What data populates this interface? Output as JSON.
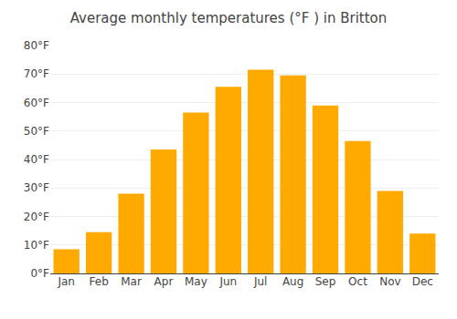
{
  "chart_data": {
    "type": "bar",
    "title": "Average monthly temperatures (°F ) in Britton",
    "categories": [
      "Jan",
      "Feb",
      "Mar",
      "Apr",
      "May",
      "Jun",
      "Jul",
      "Aug",
      "Sep",
      "Oct",
      "Nov",
      "Dec"
    ],
    "values": [
      8.5,
      14.5,
      28.0,
      43.5,
      56.5,
      65.5,
      71.5,
      69.5,
      59.0,
      46.5,
      29.0,
      14.0
    ],
    "color": "#FFAA00",
    "ylim": [
      0,
      80
    ],
    "yticks": [
      {
        "value": 0,
        "label": "0°F"
      },
      {
        "value": 10,
        "label": "10°F"
      },
      {
        "value": 20,
        "label": "20°F"
      },
      {
        "value": 30,
        "label": "30°F"
      },
      {
        "value": 40,
        "label": "40°F"
      },
      {
        "value": 50,
        "label": "50°F"
      },
      {
        "value": 60,
        "label": "60°F"
      },
      {
        "value": 70,
        "label": "70°F"
      },
      {
        "value": 80,
        "label": "80°F"
      }
    ],
    "grid": true
  }
}
